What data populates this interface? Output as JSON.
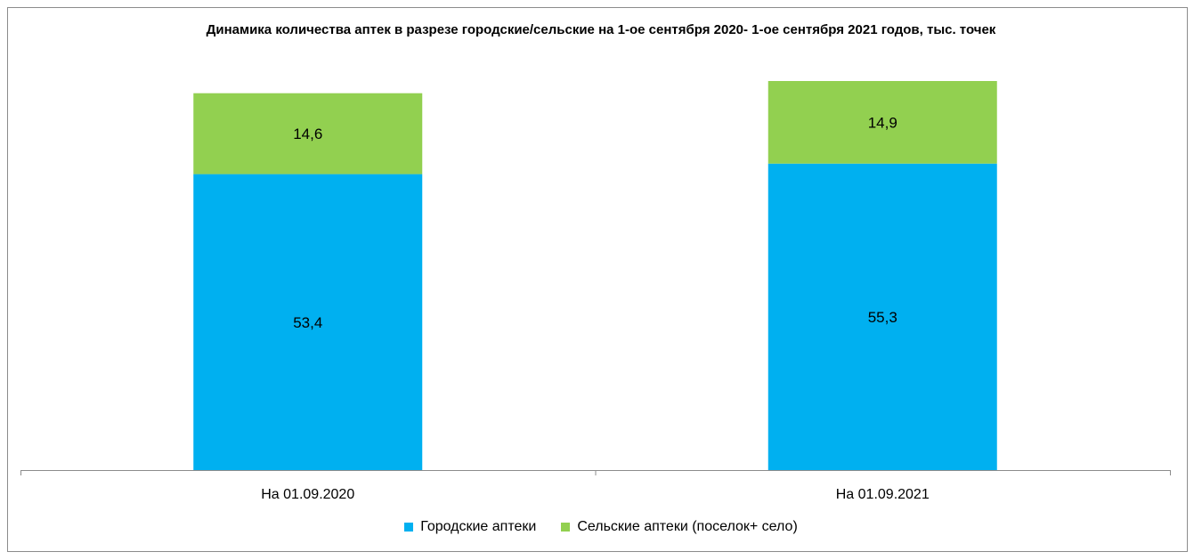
{
  "chart_data": {
    "type": "bar",
    "stacked": true,
    "title": "Динамика количества аптек в разрезе городские/сельские на 1-ое сентября 2020- 1-ое сентября 2021 годов, тыс. точек",
    "categories": [
      "На 01.09.2020",
      "На 01.09.2021"
    ],
    "series": [
      {
        "name": "Городские аптеки",
        "values": [
          53.4,
          55.3
        ],
        "labels": [
          "53,4",
          "55,3"
        ],
        "color": "#00B0F0"
      },
      {
        "name": "Сельские аптеки (поселок+ село)",
        "values": [
          14.6,
          14.9
        ],
        "labels": [
          "14,6",
          "14,9"
        ],
        "color": "#92D050"
      }
    ],
    "ylim": [
      0,
      70.2
    ],
    "grid": false,
    "legend_position": "bottom"
  }
}
